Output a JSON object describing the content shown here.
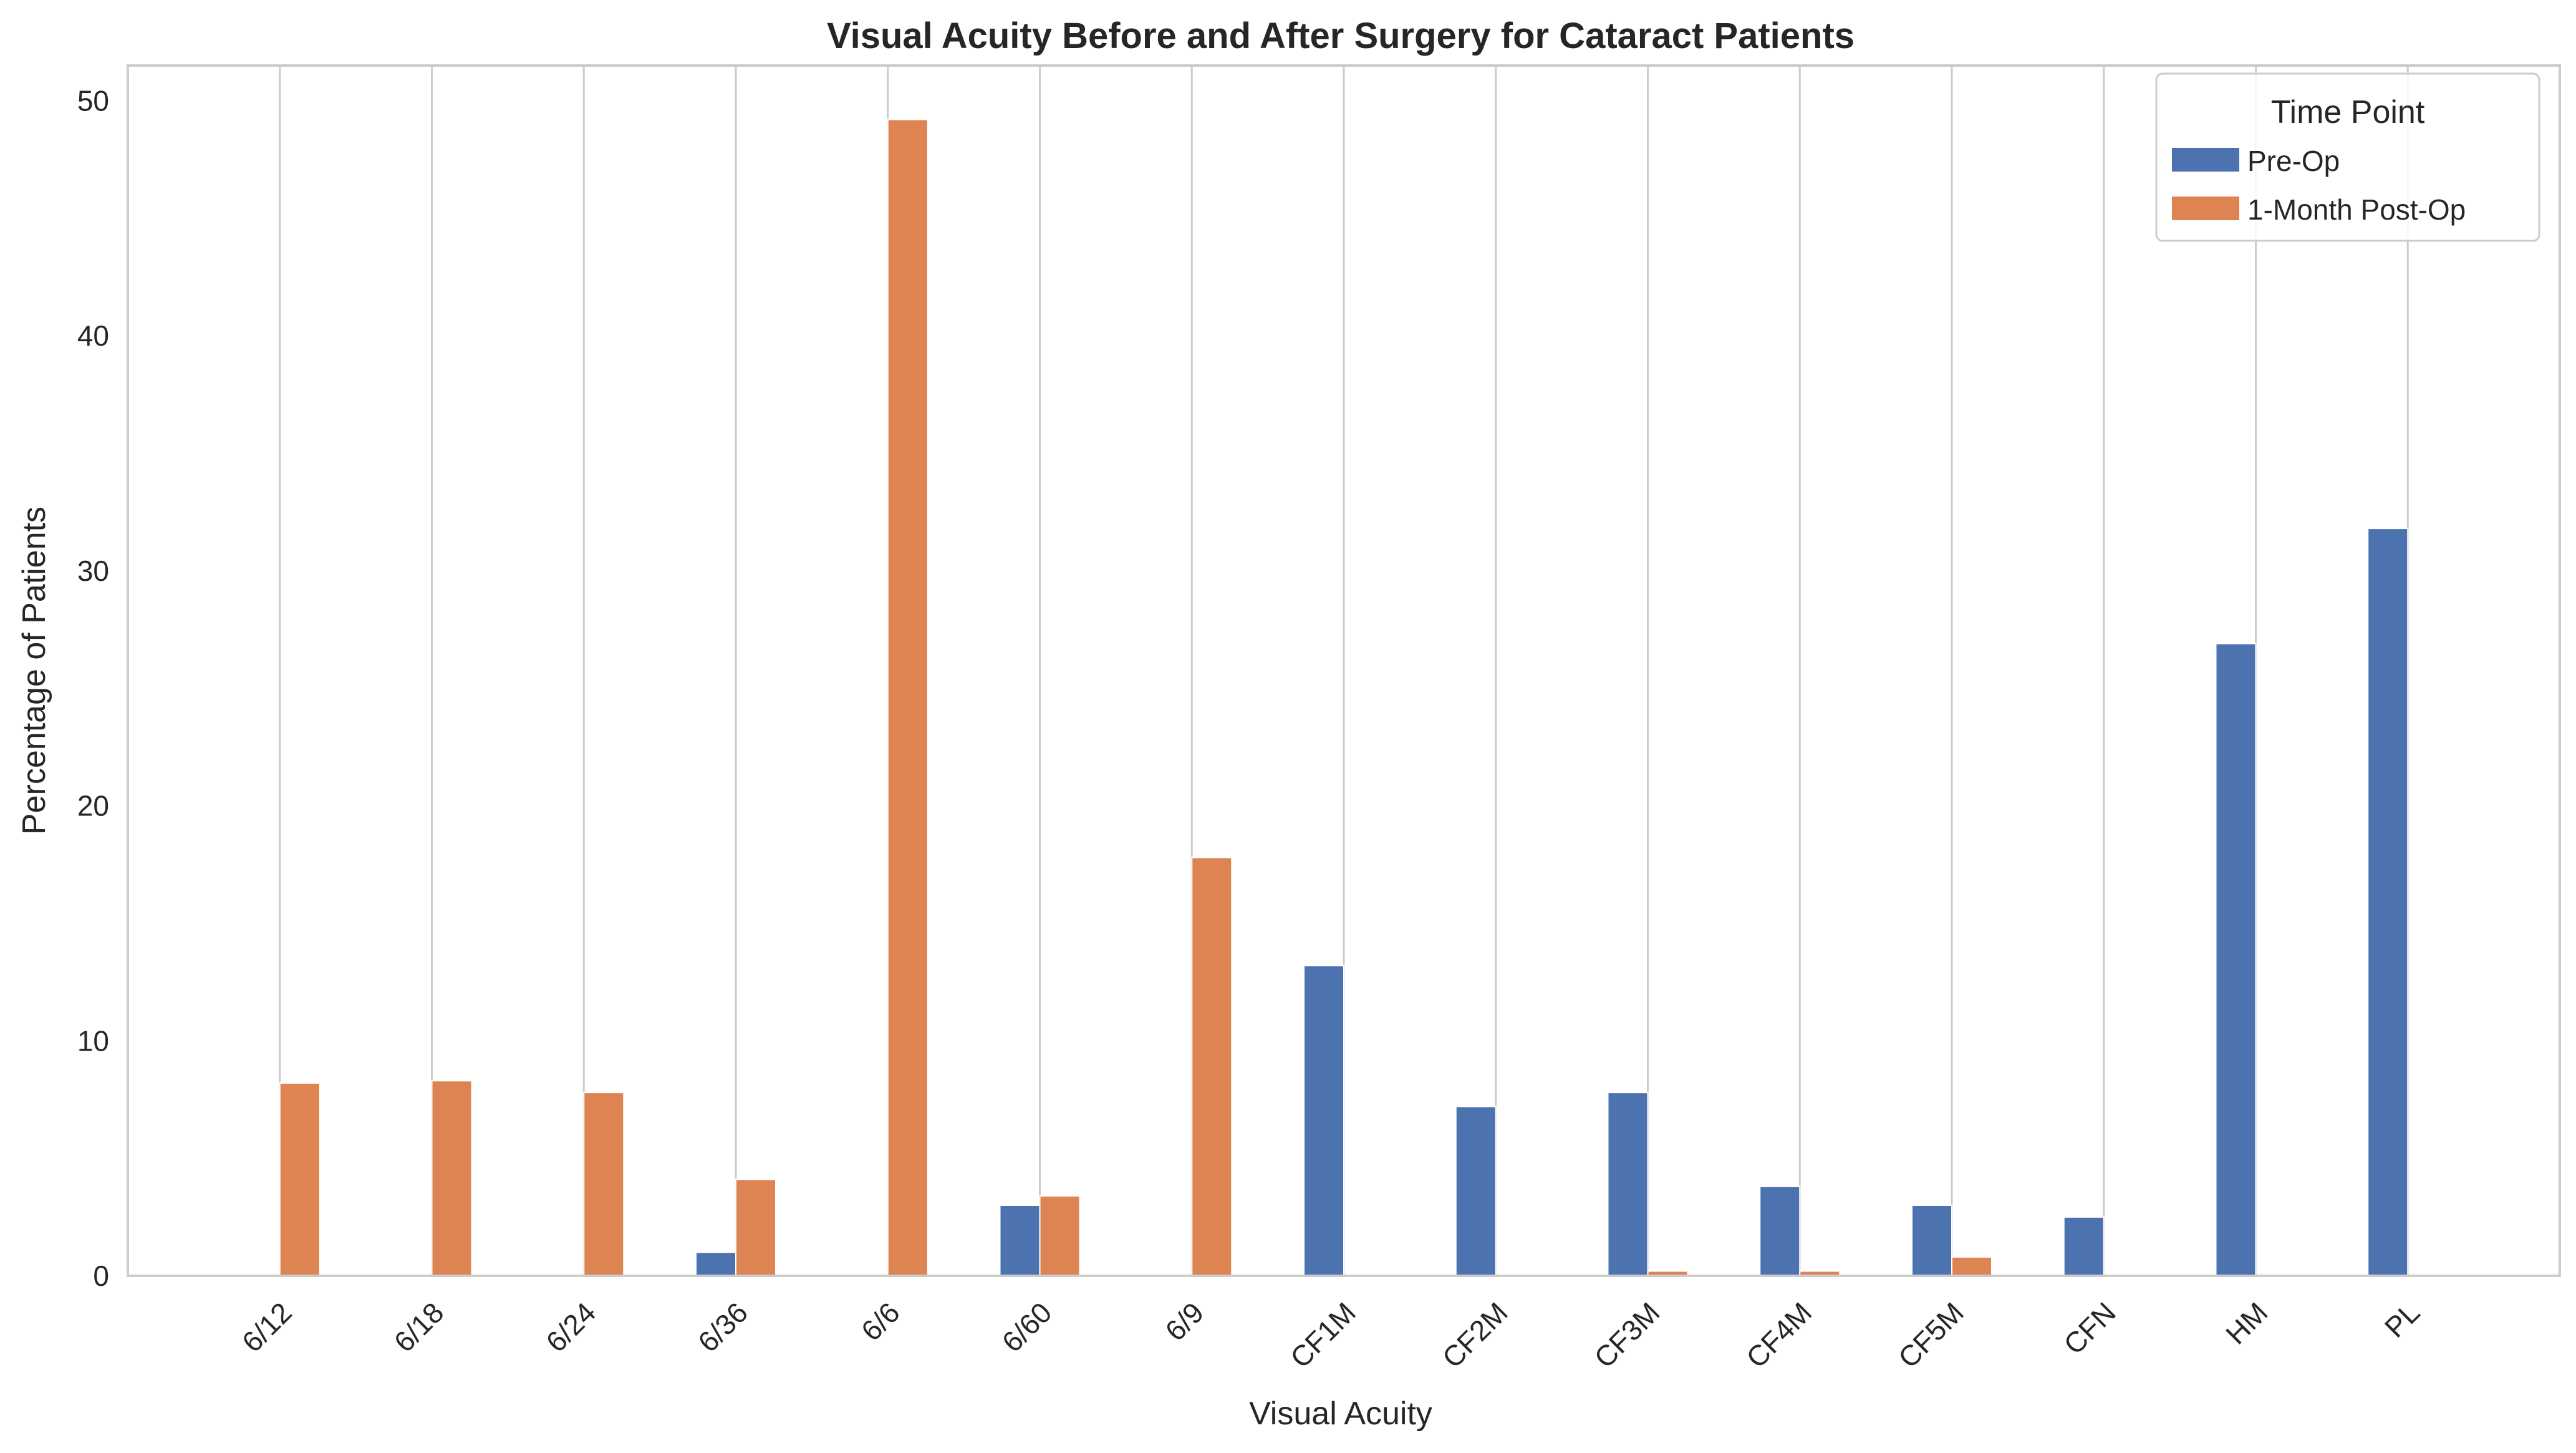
{
  "chart_data": {
    "type": "bar",
    "title": "Visual Acuity Before and After Surgery for Cataract Patients",
    "xlabel": "Visual Acuity",
    "ylabel": "Percentage of Patients",
    "ylim": [
      0,
      51.5
    ],
    "yticks": [
      0,
      10,
      20,
      30,
      40,
      50
    ],
    "grid": "vertical",
    "legend": {
      "title": "Time Point",
      "position": "top-right"
    },
    "categories": [
      "6/12",
      "6/18",
      "6/24",
      "6/36",
      "6/6",
      "6/60",
      "6/9",
      "CF1M",
      "CF2M",
      "CF3M",
      "CF4M",
      "CF5M",
      "CFN",
      "HM",
      "PL"
    ],
    "series": [
      {
        "name": "Pre-Op",
        "color": "#4c72b0",
        "values": [
          0,
          0,
          0,
          1.0,
          0,
          3.0,
          0,
          13.2,
          7.2,
          7.8,
          3.8,
          3.0,
          2.5,
          26.9,
          31.8
        ]
      },
      {
        "name": "1-Month Post-Op",
        "color": "#dd8452",
        "values": [
          8.2,
          8.3,
          7.8,
          4.1,
          49.2,
          3.4,
          17.8,
          0,
          0,
          0.2,
          0.2,
          0.8,
          0,
          0,
          0
        ]
      }
    ]
  }
}
